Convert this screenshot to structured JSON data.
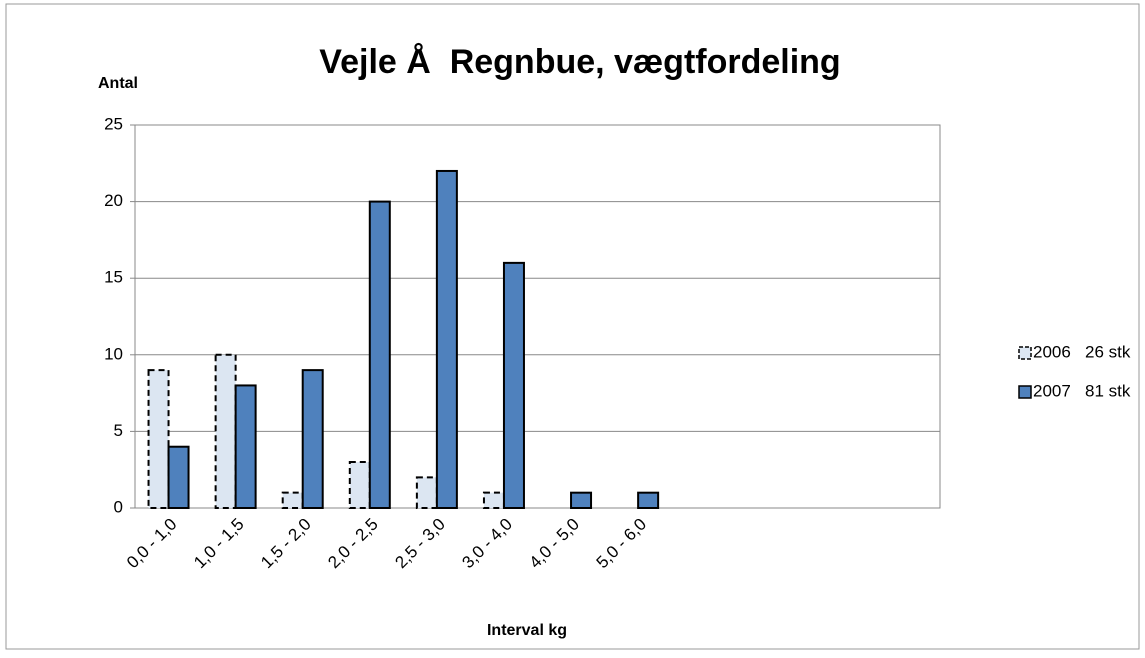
{
  "chart_data": {
    "type": "bar",
    "title": "Vejle Å  Regnbue, vægtfordeling",
    "y_label": "Antal",
    "x_label": "Interval kg",
    "categories": [
      "0,0 - 1,0",
      "1,0 - 1,5",
      "1,5 - 2,0",
      "2,0 - 2,5",
      "2,5 - 3,0",
      "3,0 - 4,0",
      "4,0 - 5,0",
      "5,0 - 6,0",
      null,
      null,
      null,
      null
    ],
    "series": [
      {
        "name": "2006   26 stk",
        "color": "#dce6f2",
        "border": "dashed",
        "values": [
          9,
          10,
          1,
          3,
          2,
          1,
          0,
          0,
          null,
          null,
          null,
          null
        ]
      },
      {
        "name": "2007   81 stk",
        "color": "#4f81bd",
        "border": "solid",
        "values": [
          4,
          8,
          9,
          20,
          22,
          16,
          1,
          1,
          null,
          null,
          null,
          null
        ]
      }
    ],
    "ylim": [
      0,
      25
    ],
    "yticks": [
      0,
      5,
      10,
      15,
      20,
      25
    ],
    "grid": true,
    "legend": "right"
  }
}
